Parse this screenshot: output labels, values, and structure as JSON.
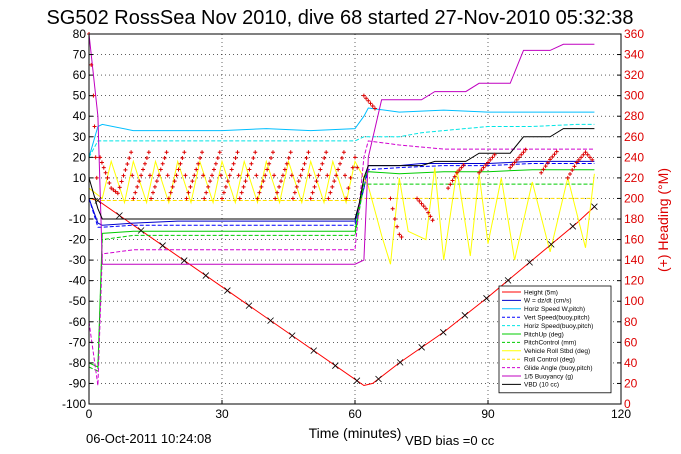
{
  "chart_data": {
    "type": "line",
    "title": "SG502 RossSea Nov 2010, dive 68 started 27-Nov-2010 05:32:38",
    "xlabel": "Time (minutes)",
    "ylabel_right": "(+) Heading (°M)",
    "xlim": [
      0,
      120
    ],
    "ylim": [
      -100,
      80
    ],
    "ylim_right": [
      0,
      360
    ],
    "x_ticks": [
      0,
      30,
      60,
      90,
      120
    ],
    "y_ticks": [
      -100,
      -90,
      -80,
      -70,
      -60,
      -50,
      -40,
      -30,
      -20,
      -10,
      0,
      10,
      20,
      30,
      40,
      50,
      60,
      70,
      80
    ],
    "y_ticks_right": [
      0,
      20,
      40,
      60,
      80,
      100,
      120,
      140,
      160,
      180,
      200,
      220,
      240,
      260,
      280,
      300,
      320,
      340,
      360
    ],
    "grid": true,
    "legend_position": "bottom-right",
    "footer_left": "06-Oct-2011 10:24:08",
    "footer_right": "VBD bias =0 cc",
    "colors": {
      "height": "#ff0000",
      "w": "#0000cc",
      "horz_speed_w_pitch": "#00bfff",
      "vert_speed_buoy": "#0000ff",
      "horz_speed_buoy": "#00e5e5",
      "pitch_up": "#00cc00",
      "pitch_control": "#00cc00",
      "vehicle_roll": "#ffff00",
      "roll_control": "#ffe000",
      "glide_angle": "#d000d0",
      "buoyancy": "#c000c0",
      "vbd": "#000000",
      "heading": "#dd0000"
    },
    "series": [
      {
        "name": "Height (5m)",
        "key": "height",
        "dash": "solid",
        "x": [
          0,
          2,
          62,
          64,
          70,
          80,
          90,
          100,
          110,
          114
        ],
        "y": [
          0,
          -1,
          -91,
          -90,
          -80,
          -65,
          -48,
          -30,
          -12,
          -4
        ]
      },
      {
        "name": "W = dz/dt (cm/s)",
        "key": "w",
        "dash": "solid",
        "x": [
          0,
          2,
          3,
          10,
          20,
          30,
          40,
          50,
          60,
          62,
          63,
          70,
          75,
          80,
          90,
          100,
          110,
          114
        ],
        "y": [
          0,
          -12,
          -13,
          -12,
          -11,
          -11,
          -11,
          -11,
          -11,
          5,
          16,
          16,
          17,
          17,
          17,
          18,
          18,
          18
        ]
      },
      {
        "name": "Horiz Speed W,pitch)",
        "key": "horz_speed_w_pitch",
        "dash": "solid",
        "x": [
          0,
          2,
          3,
          10,
          20,
          30,
          40,
          50,
          60,
          62,
          63,
          70,
          80,
          90,
          100,
          110,
          114
        ],
        "y": [
          20,
          35,
          36,
          33,
          33,
          33,
          34,
          33,
          34,
          40,
          44,
          42,
          43,
          42,
          42,
          42,
          42
        ]
      },
      {
        "name": "Vert Speed(buoy,pitch)",
        "key": "vert_speed_buoy",
        "dash": "dashed",
        "x": [
          0,
          2,
          3,
          10,
          20,
          30,
          40,
          50,
          60,
          62,
          63,
          70,
          80,
          90,
          100,
          110,
          114
        ],
        "y": [
          0,
          -14,
          -14,
          -13,
          -13,
          -13,
          -13,
          -13,
          -13,
          5,
          14,
          15,
          16,
          16,
          17,
          17,
          17
        ]
      },
      {
        "name": "Horiz Speed(buoy,pitch)",
        "key": "horz_speed_buoy",
        "dash": "dashed",
        "x": [
          0,
          2,
          3,
          10,
          20,
          30,
          40,
          50,
          60,
          62,
          63,
          70,
          75,
          80,
          90,
          100,
          110,
          114
        ],
        "y": [
          20,
          28,
          28,
          28,
          28,
          28,
          28,
          28,
          28,
          30,
          30,
          30,
          32,
          33,
          35,
          35,
          36,
          36
        ]
      },
      {
        "name": "PitchUp (deg)",
        "key": "pitch_up",
        "dash": "solid",
        "x": [
          0,
          2,
          3,
          10,
          20,
          30,
          40,
          50,
          60,
          62,
          63,
          70,
          80,
          90,
          100,
          110,
          114
        ],
        "y": [
          -80,
          -82,
          -17,
          -16,
          -16,
          -16,
          -16,
          -16,
          -16,
          10,
          13,
          12,
          13,
          13,
          14,
          14,
          14
        ]
      },
      {
        "name": "PitchControl (mm)",
        "key": "pitch_control",
        "dash": "dashed",
        "x": [
          0,
          2,
          3,
          10,
          20,
          30,
          40,
          50,
          60,
          62,
          63,
          70,
          80,
          90,
          100,
          110,
          114
        ],
        "y": [
          -82,
          -84,
          -20,
          -18,
          -18,
          -18,
          -18,
          -18,
          -18,
          7,
          7,
          7,
          7,
          7,
          7,
          7,
          7
        ]
      },
      {
        "name": "Vehicle Roll Stbd (deg)",
        "key": "vehicle_roll",
        "dash": "solid",
        "x": [
          0,
          3,
          5,
          8,
          10,
          13,
          15,
          18,
          20,
          23,
          25,
          28,
          30,
          33,
          35,
          38,
          40,
          43,
          45,
          48,
          50,
          53,
          55,
          58,
          60,
          63,
          66,
          68,
          70,
          72,
          76,
          78,
          80,
          83,
          86,
          88,
          90,
          93,
          96,
          100,
          104,
          108,
          112,
          114
        ],
        "y": [
          5,
          0,
          18,
          -2,
          18,
          -2,
          18,
          -2,
          18,
          -2,
          18,
          -2,
          18,
          -2,
          18,
          -2,
          18,
          -2,
          18,
          -2,
          18,
          -2,
          18,
          -2,
          18,
          6,
          -18,
          -32,
          10,
          -16,
          -20,
          15,
          -30,
          14,
          -28,
          12,
          -22,
          10,
          -30,
          8,
          -26,
          10,
          -24,
          12
        ]
      },
      {
        "name": "Roll Control (deg)",
        "key": "roll_control",
        "dash": "dashed",
        "x": [
          0,
          2,
          60,
          62,
          114
        ],
        "y": [
          0,
          -1,
          -1,
          0,
          0
        ]
      },
      {
        "name": "Glide Angle (buoy,pitch)",
        "key": "glide_angle",
        "dash": "dashed",
        "x": [
          0,
          2,
          3,
          10,
          20,
          30,
          40,
          50,
          60,
          62,
          63,
          70,
          80,
          90,
          100,
          110,
          114
        ],
        "y": [
          -60,
          -91,
          -27,
          -25,
          -25,
          -25,
          -25,
          -25,
          -25,
          20,
          28,
          26,
          24,
          24,
          24,
          24,
          24
        ]
      },
      {
        "name": "1/5 Buoyancy (g)",
        "key": "buoyancy",
        "dash": "solid",
        "x": [
          0,
          2,
          3,
          60,
          62,
          63,
          66,
          75,
          78,
          85,
          88,
          95,
          98,
          104,
          107,
          114
        ],
        "y": [
          80,
          40,
          -32,
          -32,
          -30,
          20,
          48,
          48,
          52,
          52,
          56,
          56,
          72,
          72,
          75,
          75
        ]
      },
      {
        "name": "VBD (10 cc)",
        "key": "vbd",
        "dash": "solid",
        "x": [
          0,
          2,
          3,
          60,
          61,
          62,
          63,
          66,
          75,
          78,
          85,
          88,
          95,
          98,
          104,
          107,
          114
        ],
        "y": [
          10,
          -5,
          -10,
          -10,
          -2,
          10,
          16,
          16,
          16,
          18,
          18,
          22,
          22,
          30,
          30,
          34,
          34
        ]
      }
    ],
    "heading": {
      "name": "Heading (°M)",
      "segments": [
        {
          "x": [
            0,
            1,
            1.5,
            2
          ],
          "y": [
            360,
            300,
            240,
            200
          ]
        },
        {
          "x": [
            2.5,
            5,
            6.5
          ],
          "y": [
            240,
            210,
            205
          ]
        },
        {
          "x": [
            6.5,
            9.5,
            10
          ],
          "y": [
            205,
            245,
            200
          ]
        },
        {
          "x": [
            10,
            13.5,
            14
          ],
          "y": [
            200,
            245,
            200
          ]
        },
        {
          "x": [
            14,
            17.5,
            18
          ],
          "y": [
            200,
            245,
            200
          ]
        },
        {
          "x": [
            18,
            21.5,
            22
          ],
          "y": [
            200,
            245,
            200
          ]
        },
        {
          "x": [
            22,
            25.5,
            26
          ],
          "y": [
            200,
            245,
            200
          ]
        },
        {
          "x": [
            26,
            29.5,
            30
          ],
          "y": [
            200,
            245,
            200
          ]
        },
        {
          "x": [
            30,
            33.5,
            34
          ],
          "y": [
            200,
            245,
            200
          ]
        },
        {
          "x": [
            34,
            37.5,
            38
          ],
          "y": [
            200,
            245,
            200
          ]
        },
        {
          "x": [
            38,
            41.5,
            42
          ],
          "y": [
            200,
            245,
            200
          ]
        },
        {
          "x": [
            42,
            45.5,
            46
          ],
          "y": [
            200,
            245,
            200
          ]
        },
        {
          "x": [
            46,
            49.5,
            50
          ],
          "y": [
            200,
            245,
            200
          ]
        },
        {
          "x": [
            50,
            53.5,
            54
          ],
          "y": [
            200,
            245,
            200
          ]
        },
        {
          "x": [
            54,
            57.5,
            58
          ],
          "y": [
            200,
            245,
            200
          ]
        },
        {
          "x": [
            58,
            60,
            61
          ],
          "y": [
            200,
            240,
            220
          ]
        },
        {
          "x": [
            62,
            63,
            64,
            65
          ],
          "y": [
            300,
            295,
            290,
            285
          ]
        },
        {
          "x": [
            68,
            69,
            70,
            71
          ],
          "y": [
            200,
            180,
            165,
            160
          ]
        },
        {
          "x": [
            74,
            76,
            78
          ],
          "y": [
            200,
            190,
            175
          ]
        },
        {
          "x": [
            81,
            83,
            85
          ],
          "y": [
            210,
            225,
            235
          ]
        },
        {
          "x": [
            88,
            90,
            92
          ],
          "y": [
            225,
            235,
            245
          ]
        },
        {
          "x": [
            95,
            97,
            99
          ],
          "y": [
            230,
            240,
            250
          ]
        },
        {
          "x": [
            102,
            104,
            106
          ],
          "y": [
            225,
            238,
            248
          ]
        },
        {
          "x": [
            108,
            110,
            112,
            114
          ],
          "y": [
            220,
            235,
            245,
            235
          ]
        }
      ]
    }
  }
}
